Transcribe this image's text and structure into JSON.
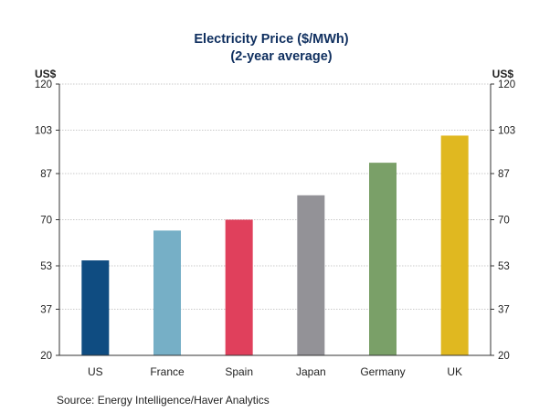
{
  "chart_data": {
    "type": "bar",
    "title": "Electricity Price ($/MWh)",
    "subtitle": "(2-year average)",
    "left_unit": "US$",
    "right_unit": "US$",
    "categories": [
      "US",
      "France",
      "Spain",
      "Japan",
      "Germany",
      "UK"
    ],
    "values": [
      55,
      66,
      70,
      79,
      91,
      101
    ],
    "colors": [
      "#0f4c81",
      "#76afc6",
      "#e0405c",
      "#939297",
      "#7aa068",
      "#e0b820"
    ],
    "ylim": [
      20,
      120
    ],
    "yticks": [
      20,
      37,
      53,
      70,
      87,
      103,
      120
    ],
    "grid": true,
    "dual_axis": true,
    "source": "Source:  Energy Intelligence/Haver Analytics"
  }
}
